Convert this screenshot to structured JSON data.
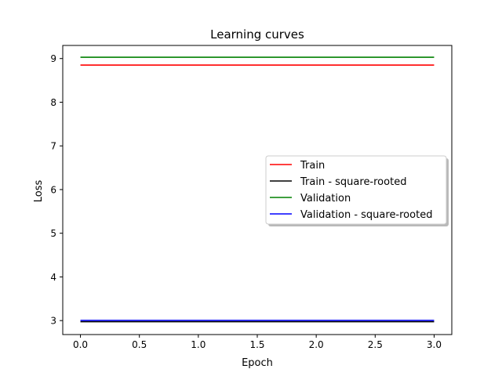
{
  "chart_data": {
    "type": "line",
    "title": "Learning curves",
    "xlabel": "Epoch",
    "ylabel": "Loss",
    "xlim": [
      -0.15,
      3.15
    ],
    "ylim": [
      2.68,
      9.3
    ],
    "xticks": [
      0.0,
      0.5,
      1.0,
      1.5,
      2.0,
      2.5,
      3.0
    ],
    "xtick_labels": [
      "0.0",
      "0.5",
      "1.0",
      "1.5",
      "2.0",
      "2.5",
      "3.0"
    ],
    "yticks": [
      3,
      4,
      5,
      6,
      7,
      8,
      9
    ],
    "ytick_labels": [
      "3",
      "4",
      "5",
      "6",
      "7",
      "8",
      "9"
    ],
    "grid": false,
    "legend_placement": "center-right",
    "x": [
      0,
      1,
      2,
      3
    ],
    "series": [
      {
        "name": "Train",
        "color": "#ff0000",
        "values": [
          8.85,
          8.85,
          8.85,
          8.85
        ]
      },
      {
        "name": "Train - square-rooted",
        "color": "#000000",
        "values": [
          2.975,
          2.975,
          2.975,
          2.975
        ]
      },
      {
        "name": "Validation",
        "color": "#008000",
        "values": [
          9.03,
          9.03,
          9.03,
          9.03
        ]
      },
      {
        "name": "Validation - square-rooted",
        "color": "#0000ff",
        "values": [
          3.005,
          3.005,
          3.005,
          3.005
        ]
      }
    ]
  }
}
